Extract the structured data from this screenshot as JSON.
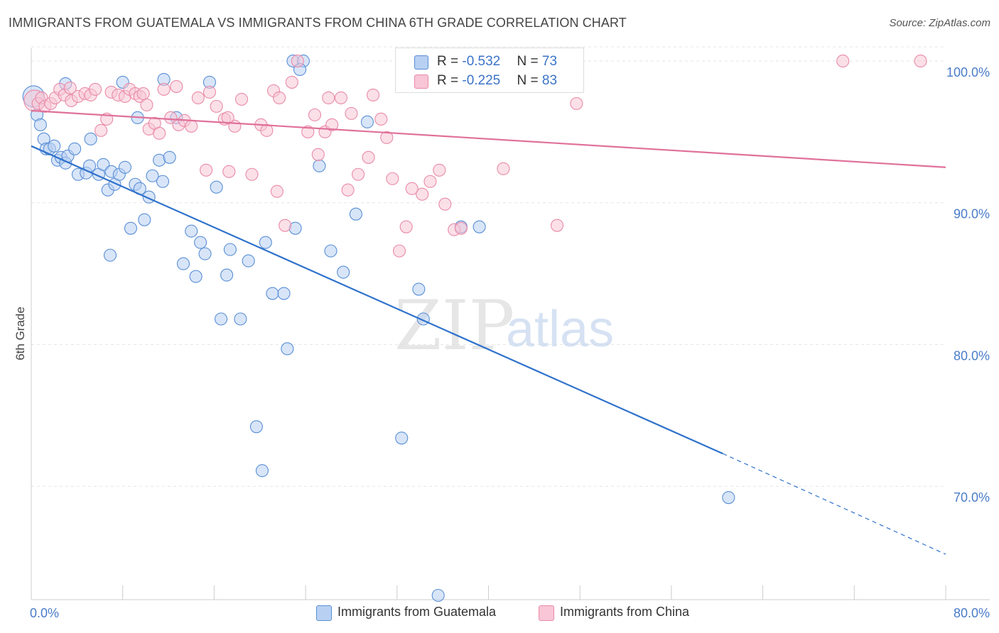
{
  "title": "IMMIGRANTS FROM GUATEMALA VS IMMIGRANTS FROM CHINA 6TH GRADE CORRELATION CHART",
  "source": "Source: ZipAtlas.com",
  "watermark": {
    "zip": "ZIP",
    "atlas": "atlas"
  },
  "legend": {
    "guatemala": {
      "r_label": "R = ",
      "r_value": "-0.532",
      "n_label": "N = ",
      "n_value": "73"
    },
    "china": {
      "r_label": "R = ",
      "r_value": "-0.225",
      "n_label": "N = ",
      "n_value": "83"
    }
  },
  "colors": {
    "guatemala_fill": "#b8d0f2",
    "guatemala_stroke": "#5a8fd6",
    "guatemala_line": "#2f72cc",
    "china_fill": "#f8c6d6",
    "china_stroke": "#e98aa8",
    "china_line": "#e0719a",
    "grid": "#e6e6e6",
    "tick_label": "#4a7cc9"
  },
  "chart_data": {
    "type": "scatter",
    "ylabel": "6th Grade",
    "xlim": [
      0,
      80
    ],
    "ylim": [
      62,
      101.5
    ],
    "x_ticks_labeled": [
      "0.0%",
      "80.0%"
    ],
    "y_ticks": [
      {
        "value": 70,
        "label": "70.0%"
      },
      {
        "value": 80,
        "label": "80.0%"
      },
      {
        "value": 90,
        "label": "90.0%"
      },
      {
        "value": 100,
        "label": "100.0%"
      }
    ],
    "series": [
      {
        "name": "Immigrants from Guatemala",
        "trend": {
          "x0": 0,
          "y0": 94.0,
          "x1": 60.5,
          "y1": 72.3,
          "dash_to_x": 80,
          "dash_to_y": 65.2
        },
        "points": [
          [
            0.2,
            97.5
          ],
          [
            0.5,
            96.2
          ],
          [
            0.8,
            95.5
          ],
          [
            1.1,
            94.5
          ],
          [
            1.3,
            93.8
          ],
          [
            1.6,
            93.8
          ],
          [
            2.0,
            94.0
          ],
          [
            2.3,
            93.0
          ],
          [
            2.6,
            93.2
          ],
          [
            3.0,
            92.8
          ],
          [
            3.2,
            93.3
          ],
          [
            3.8,
            93.8
          ],
          [
            4.1,
            92.0
          ],
          [
            4.8,
            92.1
          ],
          [
            5.2,
            94.5
          ],
          [
            5.1,
            92.6
          ],
          [
            5.9,
            92.0
          ],
          [
            6.3,
            92.7
          ],
          [
            6.7,
            90.9
          ],
          [
            7.0,
            92.2
          ],
          [
            7.3,
            91.3
          ],
          [
            7.7,
            92.0
          ],
          [
            8.2,
            92.5
          ],
          [
            8.7,
            88.2
          ],
          [
            9.1,
            91.3
          ],
          [
            9.3,
            96.0
          ],
          [
            9.5,
            91.0
          ],
          [
            9.9,
            88.8
          ],
          [
            10.6,
            91.9
          ],
          [
            10.3,
            90.4
          ],
          [
            11.2,
            93.0
          ],
          [
            11.5,
            91.5
          ],
          [
            12.1,
            93.2
          ],
          [
            12.7,
            96.0
          ],
          [
            13.3,
            85.7
          ],
          [
            14.0,
            88.0
          ],
          [
            14.4,
            84.8
          ],
          [
            14.8,
            87.2
          ],
          [
            15.2,
            86.4
          ],
          [
            15.6,
            98.5
          ],
          [
            16.6,
            81.8
          ],
          [
            17.1,
            84.9
          ],
          [
            17.4,
            86.7
          ],
          [
            18.3,
            81.8
          ],
          [
            16.2,
            91.1
          ],
          [
            19.0,
            85.9
          ],
          [
            19.7,
            74.2
          ],
          [
            20.5,
            87.2
          ],
          [
            20.2,
            71.1
          ],
          [
            21.1,
            83.6
          ],
          [
            22.1,
            83.6
          ],
          [
            22.4,
            79.7
          ],
          [
            23.1,
            88.2
          ],
          [
            22.9,
            100.0
          ],
          [
            23.8,
            100.0
          ],
          [
            23.5,
            99.4
          ],
          [
            25.2,
            92.6
          ],
          [
            26.2,
            86.6
          ],
          [
            27.3,
            85.1
          ],
          [
            28.4,
            89.2
          ],
          [
            29.4,
            95.7
          ],
          [
            32.4,
            73.4
          ],
          [
            33.9,
            83.9
          ],
          [
            34.3,
            81.8
          ],
          [
            35.6,
            62.3
          ],
          [
            37.5,
            100.0
          ],
          [
            37.6,
            88.3
          ],
          [
            39.2,
            88.3
          ],
          [
            61.0,
            69.2
          ],
          [
            6.9,
            86.3
          ],
          [
            11.6,
            98.7
          ],
          [
            8.0,
            98.5
          ],
          [
            3.0,
            98.4
          ]
        ]
      },
      {
        "name": "Immigrants from China",
        "trend": {
          "x0": 0,
          "y0": 96.5,
          "x1": 80,
          "y1": 92.5
        },
        "points": [
          [
            0.3,
            97.2
          ],
          [
            0.6,
            97.0
          ],
          [
            0.9,
            97.4
          ],
          [
            1.2,
            96.8
          ],
          [
            1.7,
            97.0
          ],
          [
            2.1,
            97.4
          ],
          [
            2.5,
            98.0
          ],
          [
            2.9,
            97.6
          ],
          [
            3.5,
            97.2
          ],
          [
            4.1,
            97.5
          ],
          [
            4.7,
            97.7
          ],
          [
            5.2,
            97.6
          ],
          [
            5.6,
            98.0
          ],
          [
            6.1,
            95.1
          ],
          [
            6.6,
            95.9
          ],
          [
            7.0,
            97.8
          ],
          [
            7.6,
            97.6
          ],
          [
            8.2,
            97.5
          ],
          [
            8.6,
            98.0
          ],
          [
            9.1,
            97.7
          ],
          [
            9.5,
            97.5
          ],
          [
            10.1,
            96.9
          ],
          [
            10.3,
            95.2
          ],
          [
            10.8,
            95.6
          ],
          [
            11.2,
            94.9
          ],
          [
            11.6,
            98.0
          ],
          [
            12.2,
            96.0
          ],
          [
            12.9,
            95.5
          ],
          [
            13.4,
            95.8
          ],
          [
            14.0,
            95.4
          ],
          [
            14.6,
            97.4
          ],
          [
            15.3,
            92.3
          ],
          [
            15.6,
            97.8
          ],
          [
            16.2,
            96.8
          ],
          [
            16.9,
            95.9
          ],
          [
            17.3,
            92.2
          ],
          [
            17.8,
            95.4
          ],
          [
            18.4,
            97.3
          ],
          [
            19.3,
            92.0
          ],
          [
            20.1,
            95.5
          ],
          [
            20.6,
            95.1
          ],
          [
            21.2,
            97.9
          ],
          [
            21.5,
            90.8
          ],
          [
            21.7,
            97.4
          ],
          [
            22.2,
            88.4
          ],
          [
            22.8,
            98.5
          ],
          [
            23.3,
            100.0
          ],
          [
            24.2,
            95.0
          ],
          [
            24.8,
            96.2
          ],
          [
            25.1,
            93.4
          ],
          [
            25.7,
            95.0
          ],
          [
            26.3,
            95.5
          ],
          [
            27.1,
            97.4
          ],
          [
            27.7,
            90.9
          ],
          [
            28.6,
            92.0
          ],
          [
            29.5,
            93.2
          ],
          [
            29.9,
            97.6
          ],
          [
            30.6,
            95.9
          ],
          [
            31.1,
            94.6
          ],
          [
            31.6,
            91.7
          ],
          [
            32.2,
            86.6
          ],
          [
            32.8,
            88.3
          ],
          [
            33.3,
            91.0
          ],
          [
            33.7,
            100.0
          ],
          [
            34.2,
            90.6
          ],
          [
            34.9,
            91.5
          ],
          [
            35.7,
            92.3
          ],
          [
            36.2,
            89.9
          ],
          [
            37.0,
            88.1
          ],
          [
            37.6,
            88.2
          ],
          [
            38.2,
            100.0
          ],
          [
            39.0,
            98.5
          ],
          [
            41.3,
            92.4
          ],
          [
            46.0,
            88.4
          ],
          [
            47.7,
            97.0
          ],
          [
            71.0,
            100.0
          ],
          [
            77.8,
            100.0
          ],
          [
            12.7,
            98.2
          ],
          [
            3.4,
            98.1
          ],
          [
            9.8,
            97.7
          ],
          [
            17.2,
            96.0
          ],
          [
            26.0,
            97.4
          ],
          [
            28.0,
            96.3
          ]
        ]
      }
    ]
  }
}
